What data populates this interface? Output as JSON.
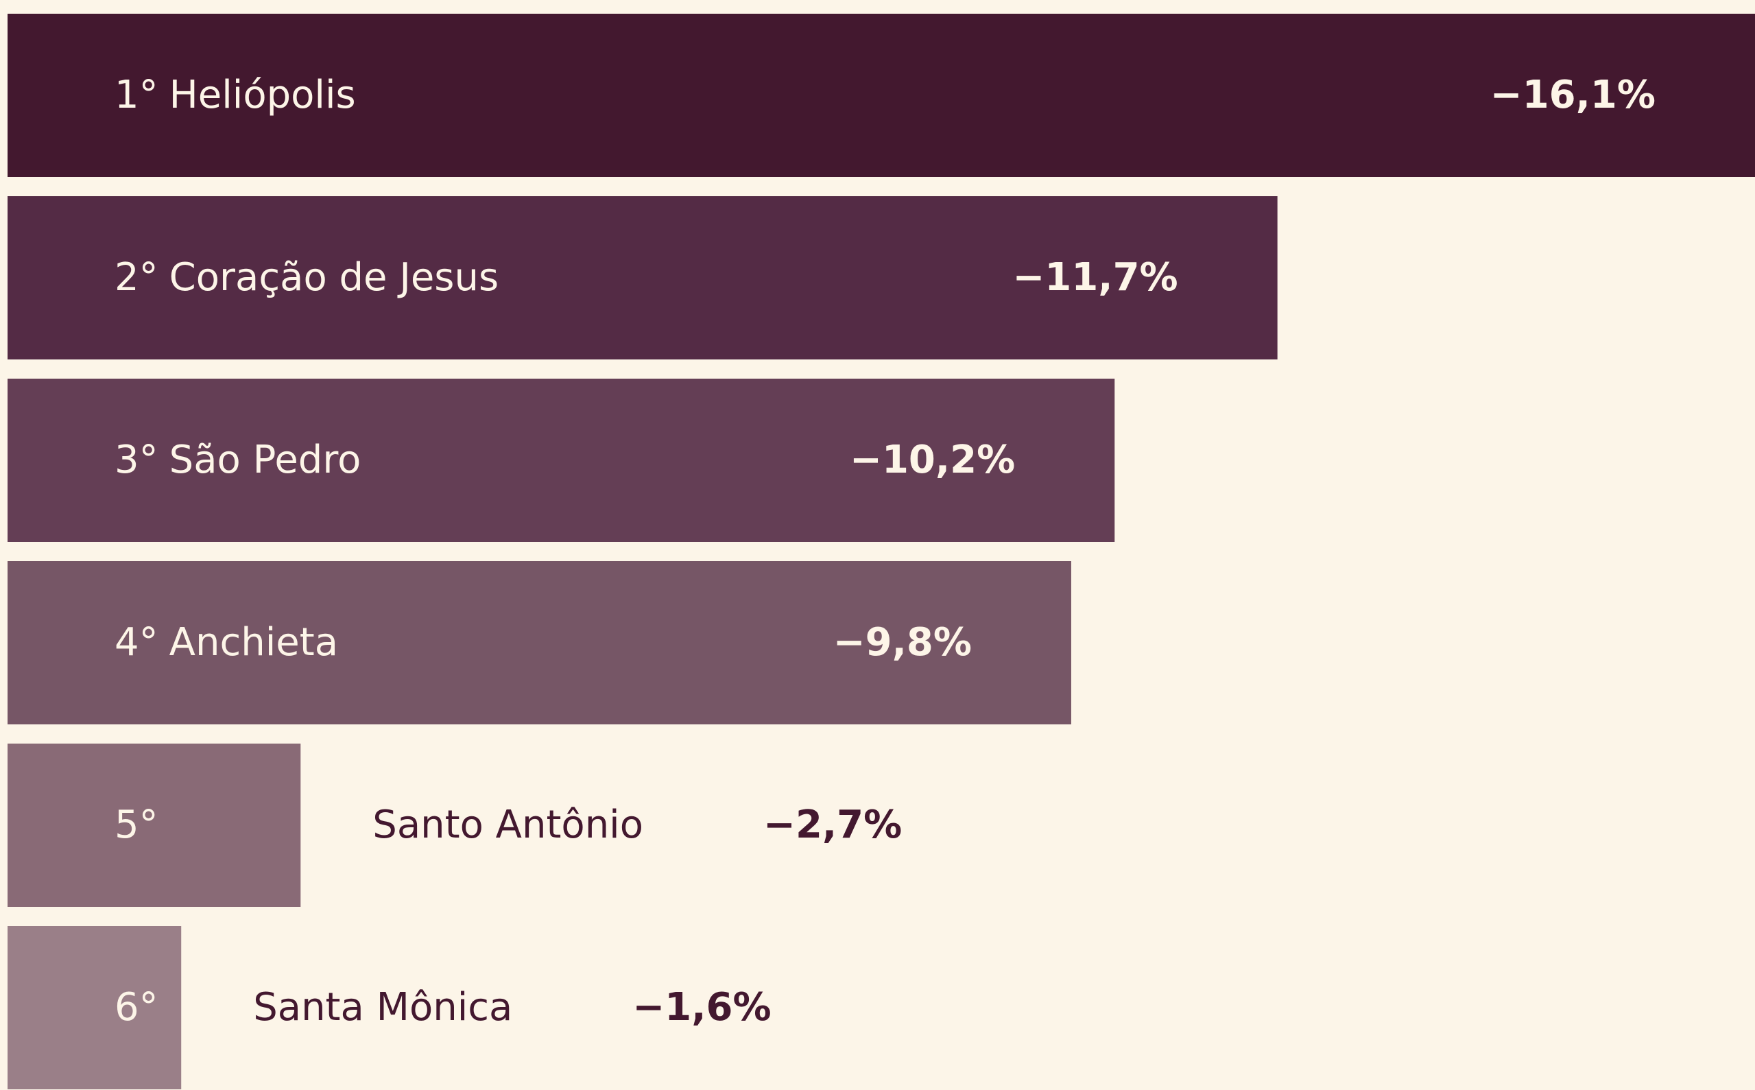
{
  "chart_data": {
    "type": "bar",
    "orientation": "horizontal",
    "ranks": [
      "1°",
      "2°",
      "3°",
      "4°",
      "5°",
      "6°"
    ],
    "categories": [
      "Heliópolis",
      "Coração de Jesus",
      "São Pedro",
      "Anchieta",
      "Santo Antônio",
      "Santa Mônica"
    ],
    "values": [
      -16.1,
      -11.7,
      -10.2,
      -9.8,
      -2.7,
      -1.6
    ],
    "value_labels": [
      "−16,1%",
      "−11,7%",
      "−10,2%",
      "−9,8%",
      "−2,7%",
      "−1,6%"
    ],
    "colors": [
      "#43182f",
      "#542b45",
      "#643e55",
      "#765666",
      "#896a76",
      "#9a7f88"
    ],
    "xlim": [
      0,
      -16.1
    ]
  }
}
